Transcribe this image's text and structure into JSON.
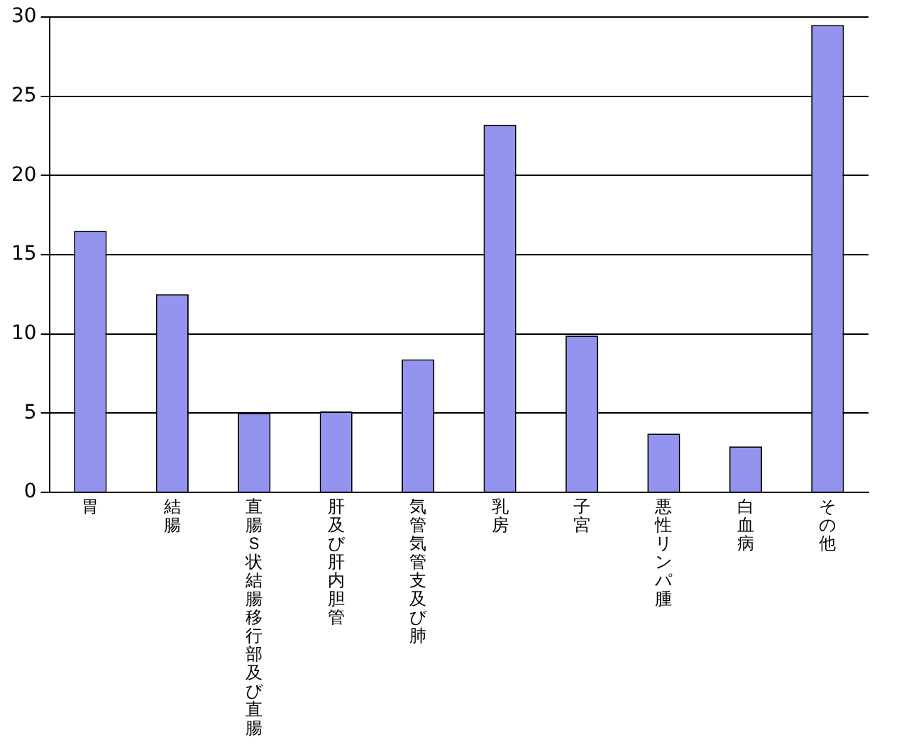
{
  "chart_data": {
    "type": "bar",
    "categories": [
      "胃",
      "結腸",
      "直腸Ｓ状結腸移行部及び直腸",
      "肝及び肝内胆管",
      "気管気管支及び肺",
      "乳房",
      "子宮",
      "悪性リンパ腫",
      "白血病",
      "その他"
    ],
    "values": [
      16.5,
      12.5,
      5.0,
      5.1,
      8.4,
      23.2,
      9.9,
      3.7,
      2.9,
      29.5
    ],
    "color": "#9393f0",
    "ylim": [
      0,
      30
    ],
    "yticks": [
      0,
      5,
      10,
      15,
      20,
      25,
      30
    ],
    "grid": "y",
    "legend": false
  }
}
